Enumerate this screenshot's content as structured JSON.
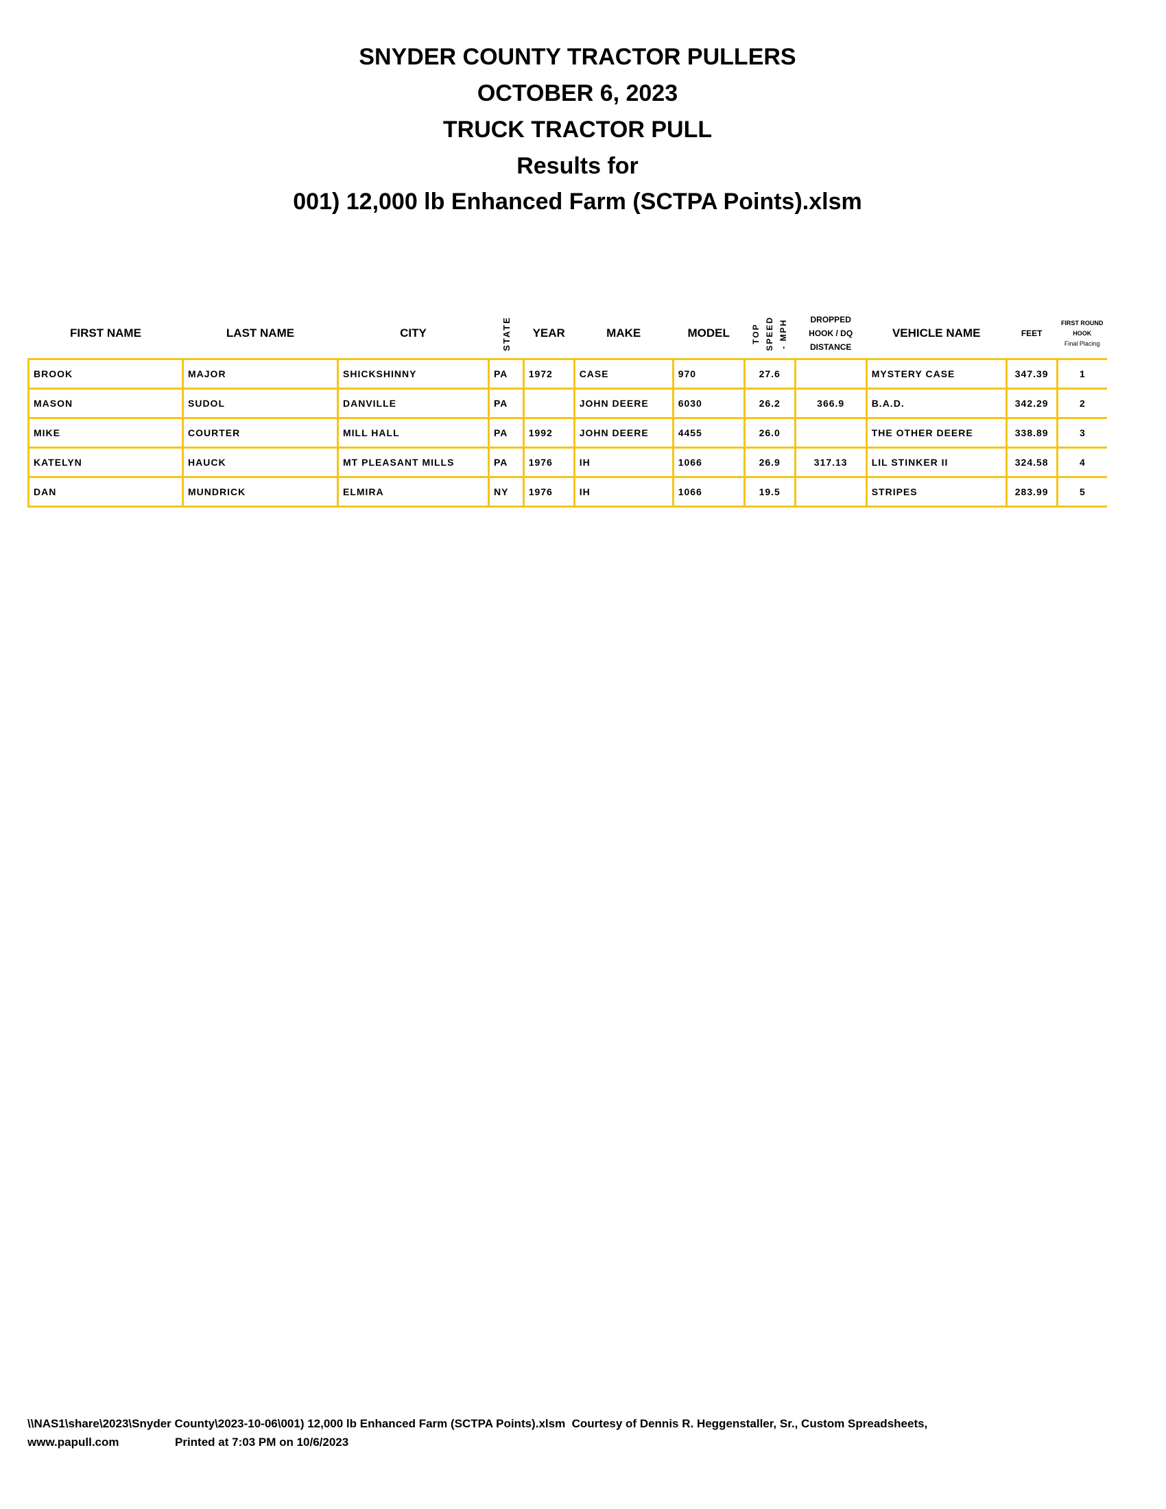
{
  "header": {
    "line1": "SNYDER COUNTY TRACTOR PULLERS",
    "line2": "OCTOBER 6, 2023",
    "line3": "TRUCK TRACTOR PULL",
    "line4": "Results for",
    "line5": "001) 12,000 lb Enhanced Farm (SCTPA Points).xlsm"
  },
  "table": {
    "columns": {
      "first_name": "FIRST NAME",
      "last_name": "LAST NAME",
      "city": "CITY",
      "state": "STATE",
      "year": "YEAR",
      "make": "MAKE",
      "model": "MODEL",
      "top_speed": [
        "TOP",
        "SPEED",
        "- MPH"
      ],
      "dropped_hook": [
        "DROPPED",
        "HOOK / DQ",
        "DISTANCE"
      ],
      "vehicle_name": "VEHICLE NAME",
      "feet": "FEET",
      "placing": [
        "FIRST ROUND",
        "HOOK",
        "Final Placing"
      ]
    },
    "rows": [
      {
        "first": "BROOK",
        "last": "MAJOR",
        "city": "SHICKSHINNY",
        "state": "PA",
        "year": "1972",
        "make": "CASE",
        "model": "970",
        "speed": "27.6",
        "dq": "",
        "vehicle": "MYSTERY CASE",
        "feet": "347.39",
        "place": "1"
      },
      {
        "first": "MASON",
        "last": "SUDOL",
        "city": "DANVILLE",
        "state": "PA",
        "year": "",
        "make": "JOHN DEERE",
        "model": "6030",
        "speed": "26.2",
        "dq": "366.9",
        "vehicle": "B.A.D.",
        "feet": "342.29",
        "place": "2"
      },
      {
        "first": "MIKE",
        "last": "COURTER",
        "city": "MILL HALL",
        "state": "PA",
        "year": "1992",
        "make": "JOHN DEERE",
        "model": "4455",
        "speed": "26.0",
        "dq": "",
        "vehicle": "THE OTHER DEERE",
        "feet": "338.89",
        "place": "3"
      },
      {
        "first": "KATELYN",
        "last": "HAUCK",
        "city": "MT PLEASANT MILLS",
        "state": "PA",
        "year": "1976",
        "make": "IH",
        "model": "1066",
        "speed": "26.9",
        "dq": "317.13",
        "vehicle": "LIL STINKER II",
        "feet": "324.58",
        "place": "4"
      },
      {
        "first": "DAN",
        "last": "MUNDRICK",
        "city": "ELMIRA",
        "state": "NY",
        "year": "1976",
        "make": "IH",
        "model": "1066",
        "speed": "19.5",
        "dq": "",
        "vehicle": "STRIPES",
        "feet": "283.99",
        "place": "5"
      }
    ]
  },
  "footer": {
    "line1": "\\\\NAS1\\share\\2023\\Snyder County\\2023-10-06\\001) 12,000 lb Enhanced Farm (SCTPA Points).xlsm  Courtesy of Dennis R. Heggenstaller, Sr., Custom Spreadsheets,",
    "website": "www.papull.com",
    "printed": "Printed at 7:03 PM on 10/6/2023"
  },
  "colors": {
    "grid": "#f5c518"
  }
}
